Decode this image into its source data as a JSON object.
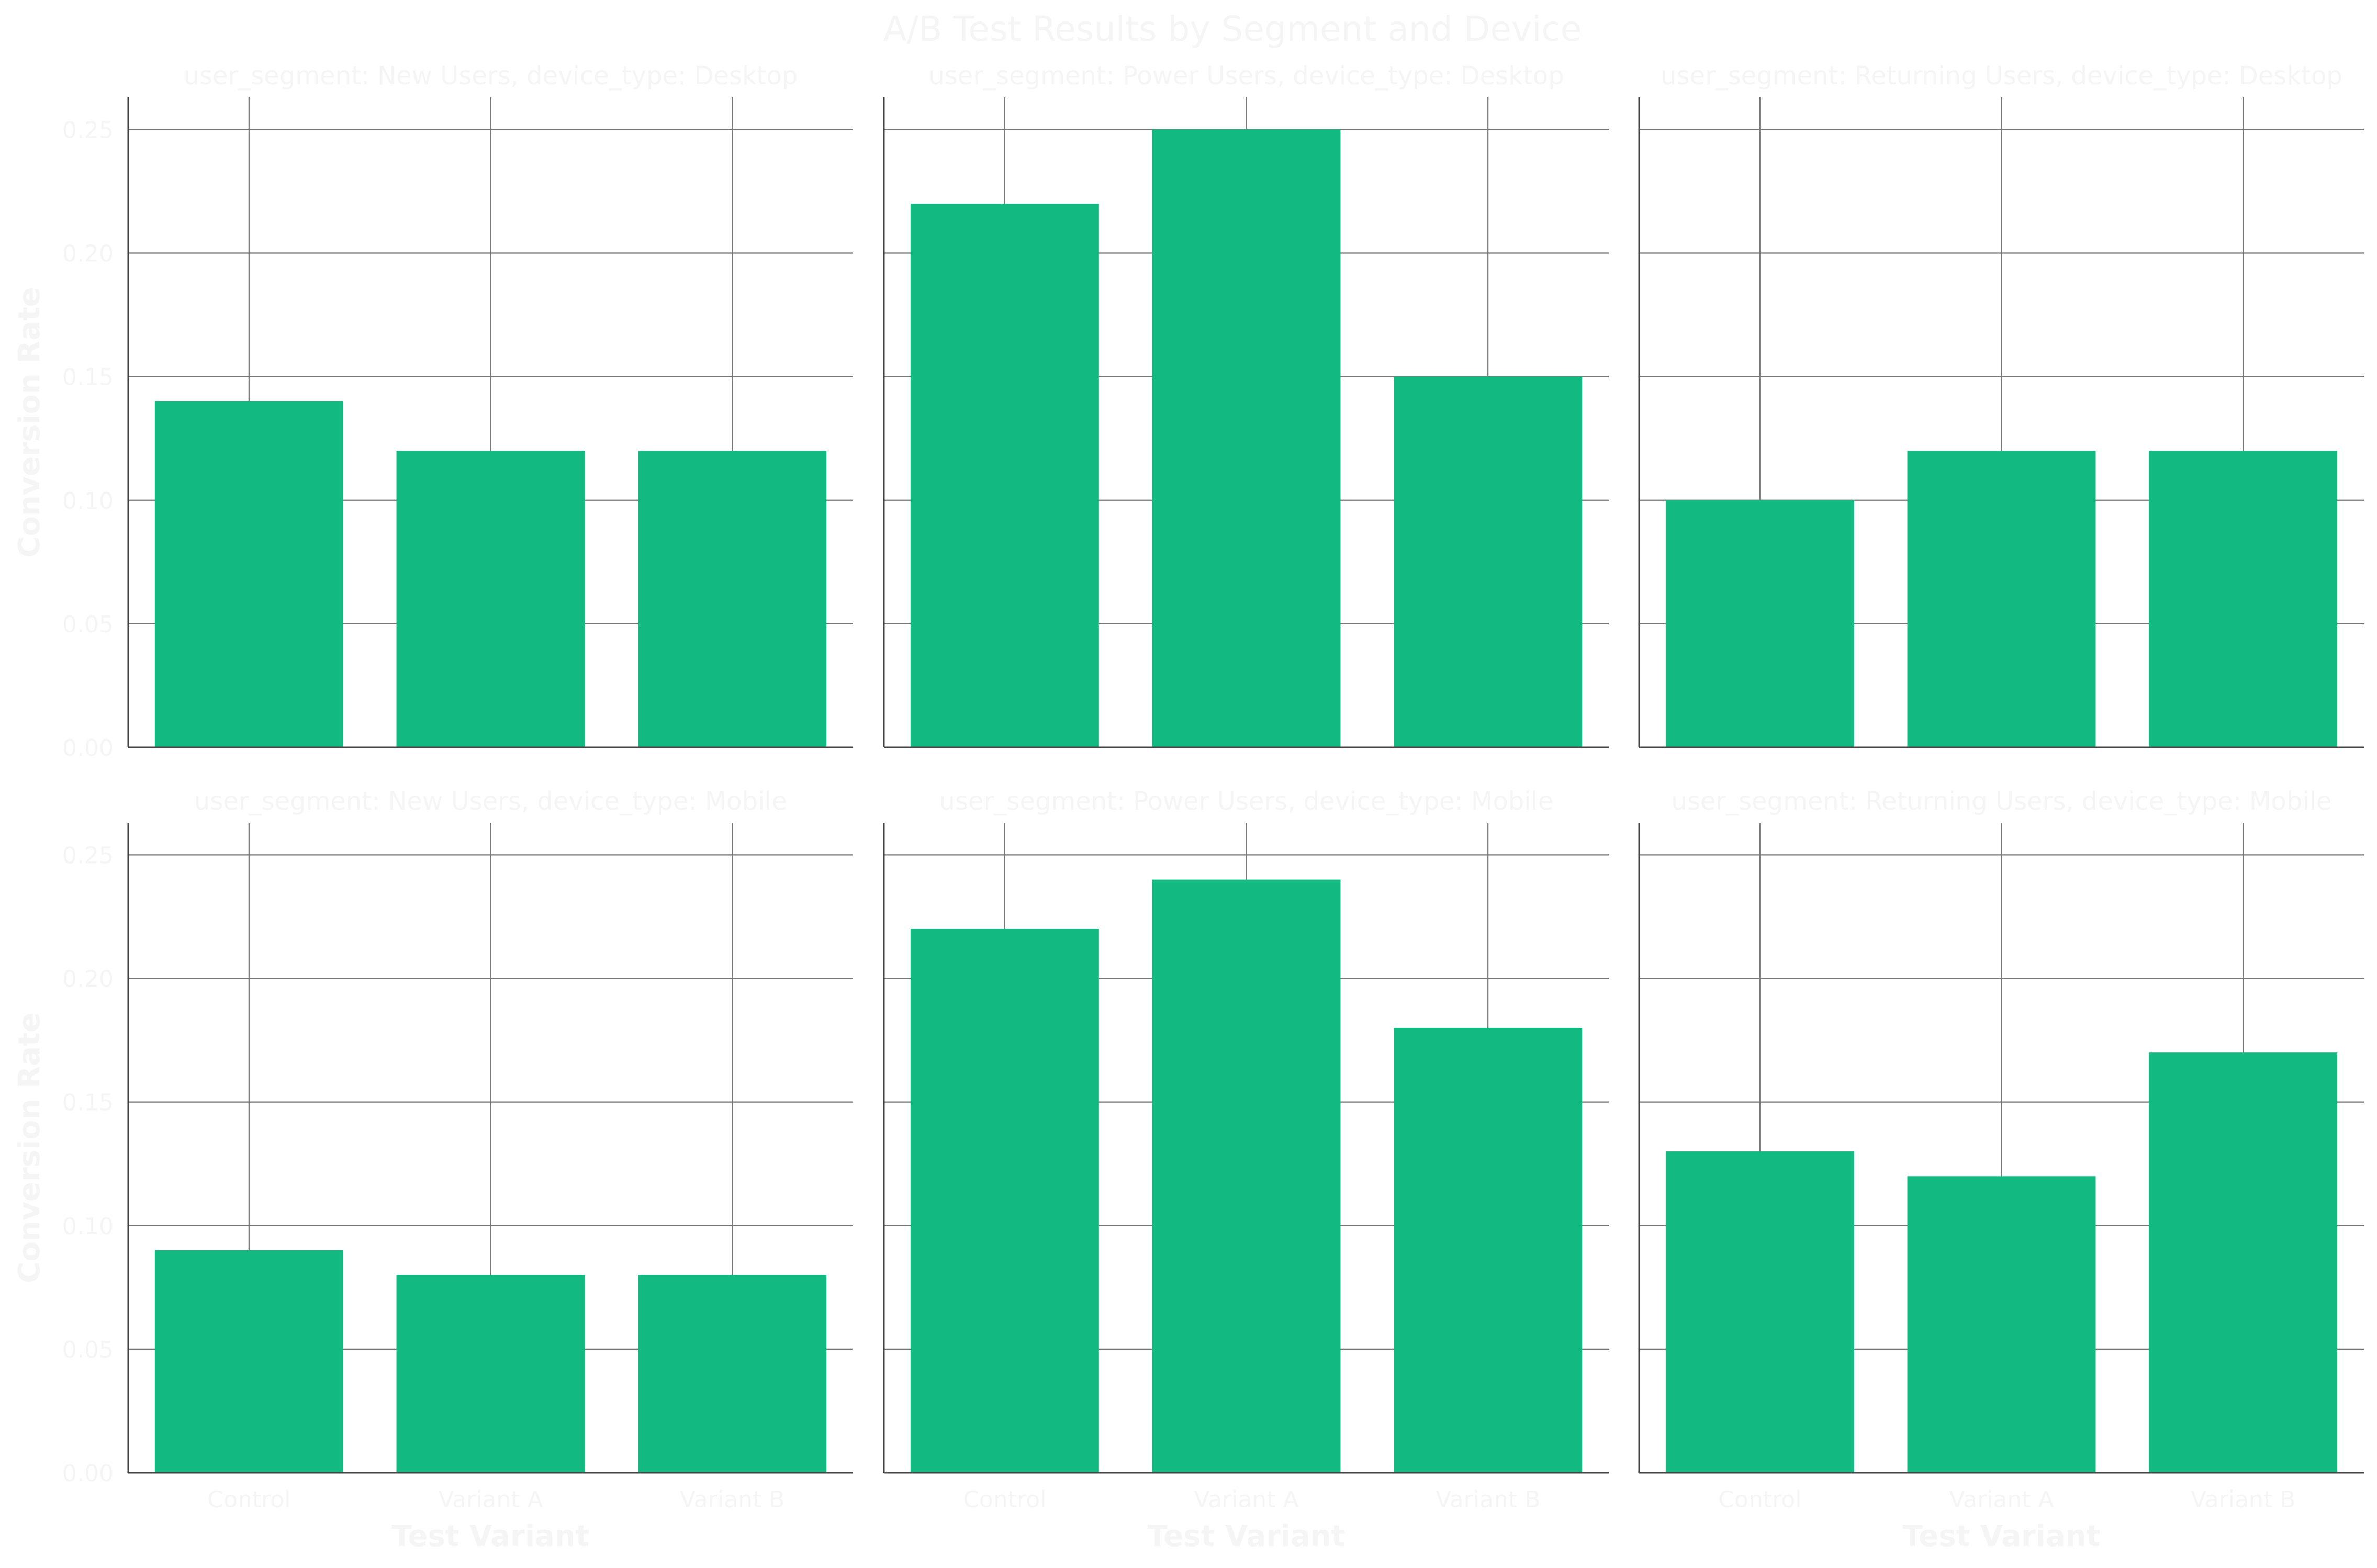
{
  "chart_data": {
    "type": "bar",
    "title": "A/B Test Results by Segment and Device",
    "xlabel": "Test Variant",
    "ylabel": "Conversion Rate",
    "categories": [
      "Control",
      "Variant A",
      "Variant B"
    ],
    "ylim": [
      0,
      0.263
    ],
    "yticks": [
      "0.00",
      "0.05",
      "0.10",
      "0.15",
      "0.20",
      "0.25"
    ],
    "grid": true,
    "bar_color": "#12b981",
    "text_color": "#f5f5f5",
    "panels": [
      {
        "title": "user_segment: New Users, device_type: Desktop",
        "values": [
          0.14,
          0.12,
          0.12
        ]
      },
      {
        "title": "user_segment: Power Users, device_type: Desktop",
        "values": [
          0.22,
          0.25,
          0.15
        ]
      },
      {
        "title": "user_segment: Returning Users, device_type: Desktop",
        "values": [
          0.1,
          0.12,
          0.12
        ]
      },
      {
        "title": "user_segment: New Users, device_type: Mobile",
        "values": [
          0.09,
          0.08,
          0.08
        ]
      },
      {
        "title": "user_segment: Power Users, device_type: Mobile",
        "values": [
          0.22,
          0.24,
          0.18
        ]
      },
      {
        "title": "user_segment: Returning Users, device_type: Mobile",
        "values": [
          0.13,
          0.12,
          0.17
        ]
      }
    ]
  }
}
